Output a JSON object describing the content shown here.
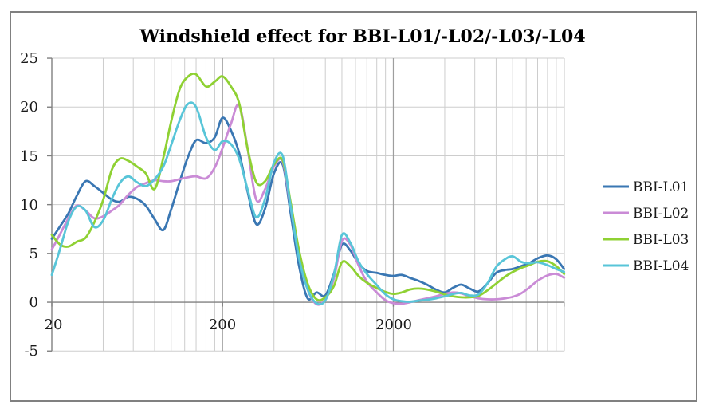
{
  "window": {
    "background": "#FFFFFF",
    "border_color": "#7F7F7F"
  },
  "chart_data": {
    "type": "line",
    "title": "Windshield effect for BBI-L01/-L02/-L03/-L04",
    "x_axis": {
      "scale": "log",
      "min": 20,
      "max": 20000,
      "tick_values": [
        20,
        200,
        2000
      ],
      "tick_labels": [
        "20",
        "200",
        "2000"
      ],
      "minor_multiples_per_decade": [
        2,
        3,
        4,
        5,
        6,
        7,
        8,
        9
      ]
    },
    "y_axis": {
      "min": -5,
      "max": 25,
      "step": 5,
      "tick_labels": [
        "25",
        "20",
        "15",
        "10",
        "5",
        "0",
        "-5"
      ]
    },
    "grid": {
      "minor_color": "#CDCDCD",
      "major_color": "#9E9E9E",
      "axis_color": "#808080"
    },
    "legend_position": "right",
    "frequencies": [
      20,
      22.4,
      25,
      28,
      31.5,
      35.5,
      40,
      45,
      50,
      56,
      63,
      71,
      80,
      90,
      100,
      112,
      125,
      140,
      160,
      180,
      200,
      224,
      250,
      280,
      315,
      355,
      400,
      450,
      500,
      560,
      630,
      710,
      800,
      900,
      1000,
      1120,
      1250,
      1400,
      1600,
      1800,
      2000,
      2240,
      2500,
      2800,
      3150,
      3550,
      4000,
      4500,
      5000,
      5600,
      6300,
      7100,
      8000,
      9000,
      10000,
      11200,
      12500,
      14000,
      16000,
      18000,
      20000
    ],
    "series": [
      {
        "name": "BBI-L01",
        "color": "#3A77B3",
        "values": [
          6.5,
          7.8,
          9.1,
          10.9,
          12.4,
          11.9,
          11.2,
          10.5,
          10.3,
          10.8,
          10.6,
          9.9,
          8.5,
          7.4,
          9.5,
          12.3,
          14.8,
          16.6,
          16.3,
          16.9,
          18.9,
          17.6,
          15.3,
          11.4,
          8.0,
          9.6,
          13.2,
          14.1,
          9.2,
          3.8,
          0.4,
          1.0,
          0.7,
          3.0,
          5.9,
          5.3,
          4.0,
          3.2,
          3.0,
          2.8,
          2.7,
          2.8,
          2.5,
          2.2,
          1.8,
          1.3,
          1.0,
          1.5,
          1.8,
          1.4,
          1.1,
          1.9,
          3.0,
          3.3,
          3.4,
          3.7,
          4.0,
          4.5,
          4.8,
          4.4,
          3.4
        ]
      },
      {
        "name": "BBI-L02",
        "color": "#CA8BD6",
        "values": [
          5.4,
          7.0,
          8.6,
          9.9,
          9.4,
          8.6,
          8.8,
          9.4,
          10.0,
          11.0,
          11.8,
          12.2,
          12.5,
          12.4,
          12.4,
          12.6,
          12.8,
          12.9,
          12.7,
          13.8,
          15.8,
          18.3,
          20.2,
          15.8,
          10.5,
          11.6,
          13.9,
          14.4,
          9.8,
          5.0,
          1.3,
          -0.2,
          0.3,
          2.5,
          6.3,
          5.9,
          3.8,
          2.1,
          1.0,
          0.2,
          -0.1,
          -0.15,
          0.0,
          0.2,
          0.4,
          0.6,
          0.85,
          1.0,
          0.9,
          0.6,
          0.4,
          0.3,
          0.3,
          0.4,
          0.55,
          0.9,
          1.5,
          2.2,
          2.75,
          2.9,
          2.5
        ]
      },
      {
        "name": "BBI-L03",
        "color": "#8FD133",
        "values": [
          6.9,
          5.9,
          5.7,
          6.2,
          6.6,
          8.2,
          10.5,
          13.6,
          14.7,
          14.5,
          13.9,
          13.2,
          11.6,
          14.8,
          18.5,
          21.8,
          23.1,
          23.35,
          22.1,
          22.6,
          23.15,
          22.1,
          20.4,
          15.8,
          12.3,
          12.4,
          14.1,
          14.55,
          10.3,
          5.4,
          1.9,
          0.3,
          0.5,
          1.7,
          4.1,
          3.7,
          2.7,
          2.0,
          1.45,
          1.05,
          0.85,
          1.0,
          1.3,
          1.4,
          1.3,
          1.1,
          0.8,
          0.6,
          0.5,
          0.5,
          0.65,
          1.2,
          1.9,
          2.6,
          3.1,
          3.5,
          3.8,
          4.15,
          4.2,
          3.7,
          2.9
        ]
      },
      {
        "name": "BBI-L04",
        "color": "#58C5D8",
        "values": [
          2.8,
          5.5,
          8.3,
          9.8,
          9.4,
          7.7,
          8.4,
          10.6,
          12.2,
          12.9,
          12.3,
          11.9,
          12.6,
          13.9,
          16.1,
          18.6,
          20.3,
          20.0,
          16.9,
          15.6,
          16.5,
          16.2,
          14.7,
          11.6,
          8.7,
          10.6,
          14.3,
          15.0,
          9.9,
          4.6,
          1.3,
          -0.1,
          0.2,
          2.9,
          6.9,
          6.1,
          4.2,
          2.9,
          1.75,
          0.8,
          0.3,
          0.1,
          0.05,
          0.15,
          0.25,
          0.4,
          0.6,
          0.85,
          0.95,
          0.7,
          0.8,
          1.9,
          3.6,
          4.4,
          4.7,
          4.15,
          4.0,
          4.1,
          3.8,
          3.4,
          3.1
        ]
      }
    ]
  }
}
